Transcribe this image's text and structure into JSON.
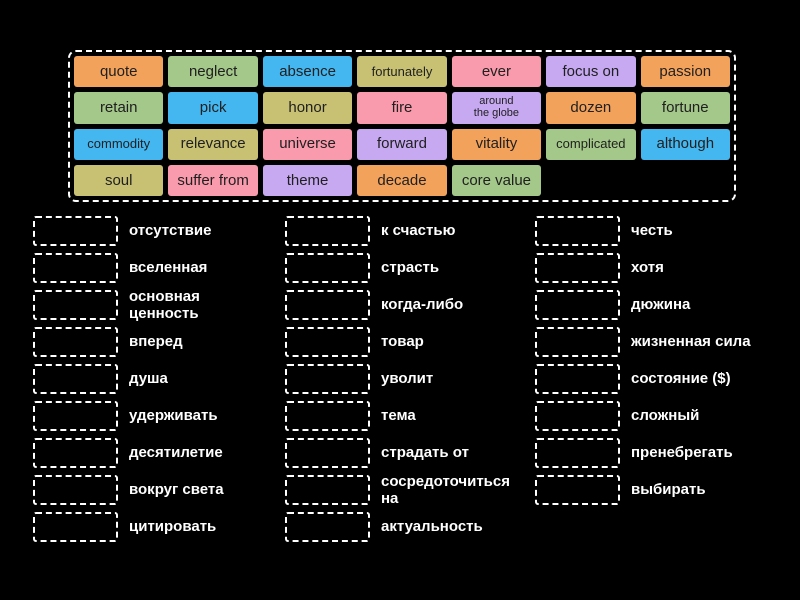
{
  "colors": {
    "background": "#000000",
    "tile_text": "#1f1f1f",
    "slot_border": "#ffffff",
    "definition_text": "#ffffff",
    "palette": {
      "orange": "#f3a25b",
      "green": "#a4c88a",
      "blue": "#45b7f0",
      "khaki": "#c8c173",
      "pink": "#f99bac",
      "purple": "#c7a9f2"
    }
  },
  "board": {
    "tiles": [
      {
        "label": "quote",
        "color": "#f3a25b"
      },
      {
        "label": "neglect",
        "color": "#a4c88a"
      },
      {
        "label": "absence",
        "color": "#45b7f0"
      },
      {
        "label": "fortunately",
        "color": "#c8c173",
        "size": "small"
      },
      {
        "label": "ever",
        "color": "#f99bac"
      },
      {
        "label": "focus on",
        "color": "#c7a9f2"
      },
      {
        "label": "passion",
        "color": "#f3a25b"
      },
      {
        "label": "retain",
        "color": "#a4c88a"
      },
      {
        "label": "pick",
        "color": "#45b7f0"
      },
      {
        "label": "honor",
        "color": "#c8c173"
      },
      {
        "label": "fire",
        "color": "#f99bac"
      },
      {
        "label": "around the globe",
        "color": "#c7a9f2",
        "size": "xsmall",
        "lines": [
          "around",
          "the globe"
        ]
      },
      {
        "label": "dozen",
        "color": "#f3a25b"
      },
      {
        "label": "fortune",
        "color": "#a4c88a"
      },
      {
        "label": "commodity",
        "color": "#45b7f0",
        "size": "small"
      },
      {
        "label": "relevance",
        "color": "#c8c173"
      },
      {
        "label": "universe",
        "color": "#f99bac"
      },
      {
        "label": "forward",
        "color": "#c7a9f2"
      },
      {
        "label": "vitality",
        "color": "#f3a25b"
      },
      {
        "label": "complicated",
        "color": "#a4c88a",
        "size": "small"
      },
      {
        "label": "although",
        "color": "#45b7f0"
      },
      {
        "label": "soul",
        "color": "#c8c173"
      },
      {
        "label": "suffer from",
        "color": "#f99bac"
      },
      {
        "label": "theme",
        "color": "#c7a9f2"
      },
      {
        "label": "decade",
        "color": "#f3a25b"
      },
      {
        "label": "core value",
        "color": "#a4c88a"
      }
    ]
  },
  "definitions": {
    "columns": [
      {
        "items": [
          "отсутствие",
          "вселенная",
          "основная ценность",
          "вперед",
          "душа",
          "удерживать",
          "десятилетие",
          "вокруг света",
          "цитировать"
        ]
      },
      {
        "items": [
          "к счастью",
          "страсть",
          "когда-либо",
          "товар",
          "уволит",
          "тема",
          "страдать от",
          "сосредоточиться на",
          "актуальность"
        ]
      },
      {
        "items": [
          "честь",
          "хотя",
          "дюжина",
          "жизненная сила",
          "состояние ($)",
          "сложный",
          "пренебрегать",
          "выбирать"
        ]
      }
    ]
  }
}
